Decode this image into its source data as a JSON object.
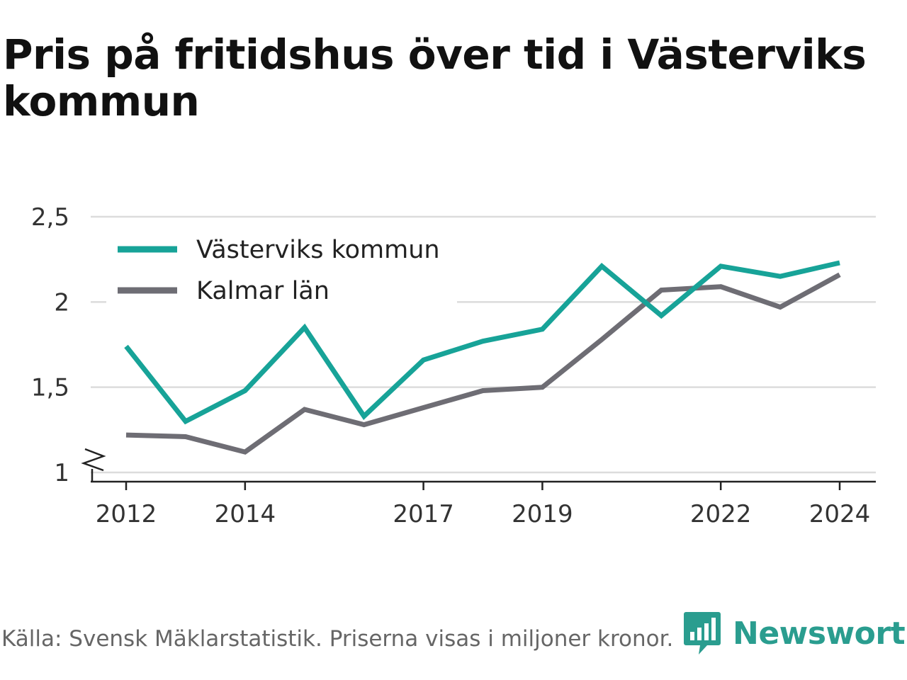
{
  "title": "Pris på fritidshus över tid i Västerviks kommun",
  "chart_data": {
    "type": "line",
    "x": [
      2012,
      2013,
      2014,
      2015,
      2016,
      2017,
      2018,
      2019,
      2020,
      2021,
      2022,
      2023,
      2024
    ],
    "x_ticks": [
      "2012",
      "2014",
      "2017",
      "2019",
      "2022",
      "2024"
    ],
    "y_ticks": [
      "1",
      "1,5",
      "2",
      "2,5"
    ],
    "ylim": [
      1,
      2.5
    ],
    "y_axis_break": true,
    "grid": "horizontal",
    "legend_placement": "top-left",
    "series": [
      {
        "name": "Västerviks kommun",
        "color": "#17a398",
        "values": [
          1.74,
          1.3,
          1.48,
          1.85,
          1.33,
          1.66,
          1.77,
          1.84,
          2.21,
          1.92,
          2.21,
          2.15,
          2.23
        ]
      },
      {
        "name": "Kalmar län",
        "color": "#6e6d74",
        "values": [
          1.22,
          1.21,
          1.12,
          1.37,
          1.28,
          1.38,
          1.48,
          1.5,
          1.78,
          2.07,
          2.09,
          1.97,
          2.16
        ]
      }
    ]
  },
  "source": "Källa: Svensk Mäklarstatistik. Priserna visas i miljoner kronor.",
  "brand": {
    "name": "Newsworthy",
    "logo_icon": "bar-chart-speech-bubble-icon",
    "color": "#2a9d8f"
  }
}
